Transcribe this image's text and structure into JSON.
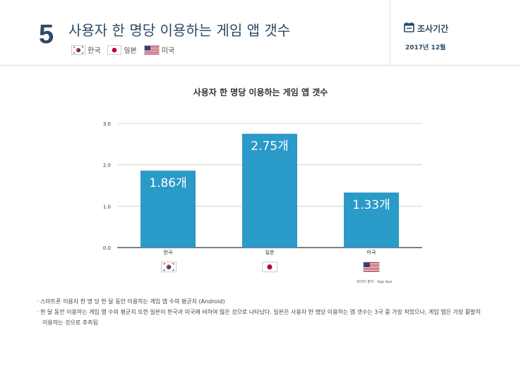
{
  "header": {
    "number": "5",
    "title": "사용자 한 명당 이용하는 게임 앱 갯수",
    "legend": [
      {
        "label": "한국",
        "flag": "kr-flag"
      },
      {
        "label": "일본",
        "flag": "jp-flag"
      },
      {
        "label": "미국",
        "flag": "us-flag"
      }
    ],
    "period_label": "조사기간",
    "period_value": "2017년 12월"
  },
  "chart_data": {
    "type": "bar",
    "title": "사용자 한 명당 이용하는 게임 앱 갯수",
    "categories": [
      "한국",
      "일본",
      "미국"
    ],
    "values": [
      1.86,
      2.75,
      1.33
    ],
    "value_labels": [
      "1.86개",
      "2.75개",
      "1.33개"
    ],
    "yticks": [
      "0.0",
      "1.0",
      "2.0",
      "3.0"
    ],
    "ylim": [
      0,
      3.0
    ],
    "xlabel": "",
    "ylabel": "",
    "grid": true,
    "bar_color": "#2a9ac9"
  },
  "source": "데이터 출처 : App Ape",
  "notes": [
    "· 스마트폰 이용자 한 명 당 한 달 동안 이용하는 게임 앱 수의 평균치 (Android)",
    "· 한 달 동안 이용하는 게임 앱 수의 평균치 또한 일본이 한국과 미국에 비하여 많은 것으로 나타났다. 일본은 사용자 한 명당 이용하는 앱 갯수는 3국 중 가장 적었으나, 게임 앱은 가장 활발히 이용하는 것으로 추측됨"
  ]
}
